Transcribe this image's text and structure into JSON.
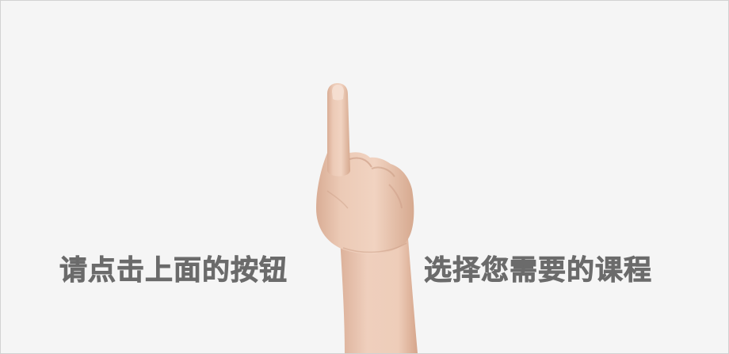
{
  "hint": {
    "left_text": "请点击上面的按钮",
    "right_text": "选择您需要的课程"
  },
  "image": {
    "subject": "pointing-hand-icon",
    "skin_color": "#ecc9b3",
    "background_color": "#f5f5f5",
    "text_color": "#6b6b6b"
  }
}
